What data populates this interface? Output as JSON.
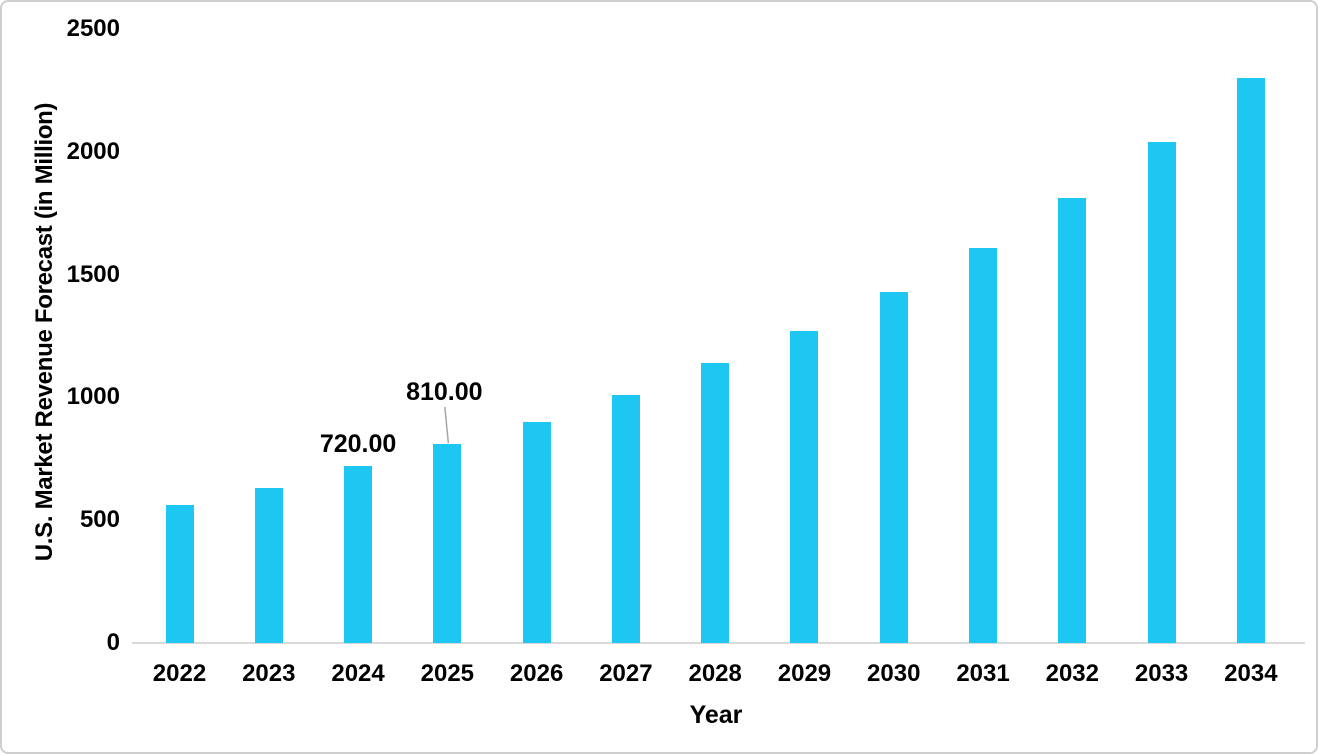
{
  "chart_data": {
    "type": "bar",
    "title": "",
    "xlabel": "Year",
    "ylabel": "U.S. Market Revenue Forecast (in Million)",
    "categories": [
      "2022",
      "2023",
      "2024",
      "2025",
      "2026",
      "2027",
      "2028",
      "2029",
      "2030",
      "2031",
      "2032",
      "2033",
      "2034"
    ],
    "values": [
      560,
      630,
      720,
      810,
      900,
      1010,
      1140,
      1270,
      1430,
      1610,
      1810,
      2040,
      2300
    ],
    "data_labels": [
      {
        "category": "2024",
        "text": "720.00",
        "leader_line": false
      },
      {
        "category": "2025",
        "text": "810.00",
        "leader_line": true
      }
    ],
    "ylim": [
      0,
      2500
    ],
    "yticks": [
      "0",
      "500",
      "1000",
      "1500",
      "2000",
      "2500"
    ],
    "grid": false,
    "legend": false,
    "bar_color": "#1ec7f2",
    "axis_line_color": "#d9d9d9",
    "leader_line_color": "#a6a6a6",
    "text_color": "#000000"
  }
}
